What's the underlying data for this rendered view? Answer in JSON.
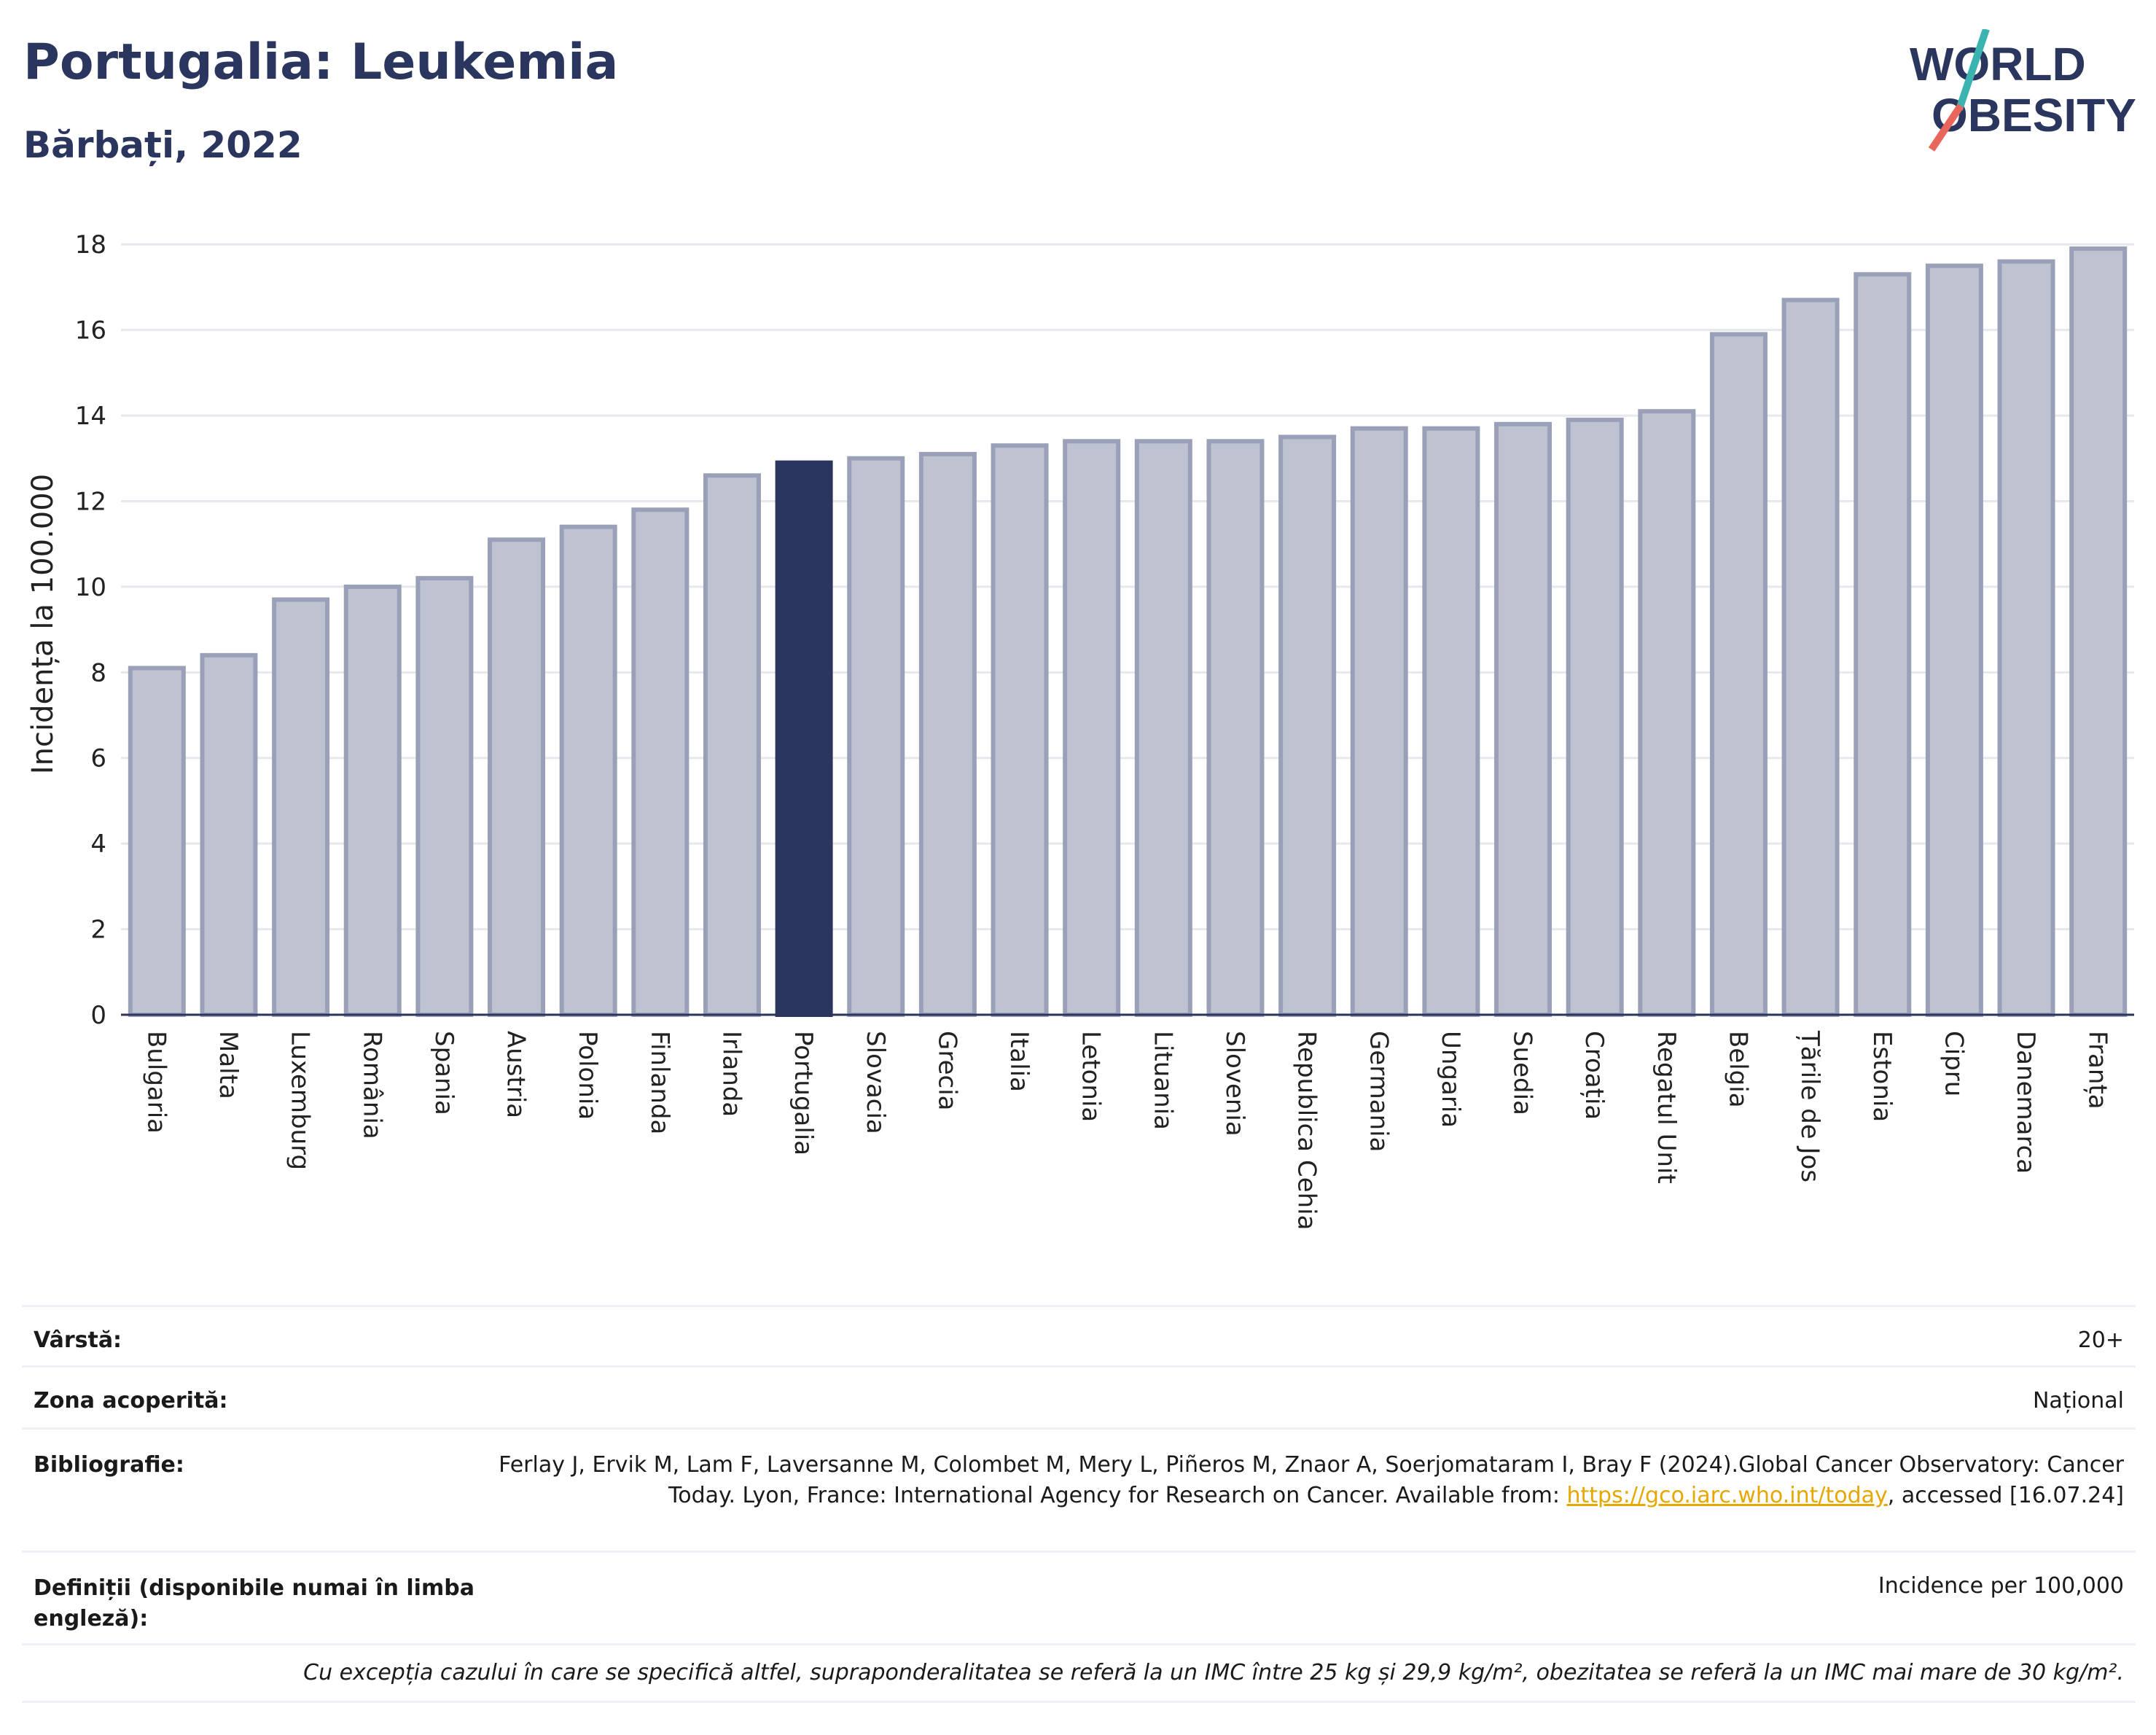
{
  "header": {
    "title": "Portugalia: Leukemia",
    "subtitle": "Bărbați, 2022",
    "logo_line1": "WORLD",
    "logo_line2": "OBESITY"
  },
  "colors": {
    "highlight": "#2a365e",
    "bar_fill": "#bfc3d1",
    "bar_stroke": "#9aa0b8",
    "slash_red": "#e8675a",
    "slash_teal": "#3bb3b1"
  },
  "chart_data": {
    "type": "bar",
    "ylabel": "Incidența la 100.000",
    "ylim": [
      0,
      18.6
    ],
    "yticks": [
      0,
      2,
      4,
      6,
      8,
      10,
      12,
      14,
      16,
      18
    ],
    "grid": true,
    "highlight_category": "Portugalia",
    "categories": [
      "Bulgaria",
      "Malta",
      "Luxemburg",
      "România",
      "Spania",
      "Austria",
      "Polonia",
      "Finlanda",
      "Irlanda",
      "Portugalia",
      "Slovacia",
      "Grecia",
      "Italia",
      "Letonia",
      "Lituania",
      "Slovenia",
      "Republica Cehia",
      "Germania",
      "Ungaria",
      "Suedia",
      "Croația",
      "Regatul Unit",
      "Belgia",
      "Țările de Jos",
      "Estonia",
      "Cipru",
      "Danemarca",
      "Franța"
    ],
    "values": [
      8.1,
      8.4,
      9.7,
      10.0,
      10.2,
      11.1,
      11.4,
      11.8,
      12.6,
      12.9,
      13.0,
      13.1,
      13.3,
      13.4,
      13.4,
      13.4,
      13.5,
      13.7,
      13.7,
      13.8,
      13.9,
      14.1,
      15.9,
      16.7,
      17.3,
      17.5,
      17.6,
      17.9
    ]
  },
  "info": {
    "age_label": "Vârstă:",
    "age_value": "20+",
    "area_label": "Zona acoperită:",
    "area_value": "Național",
    "biblio_label": "Bibliografie:",
    "biblio_text": "Ferlay J, Ervik M, Lam F, Laversanne M, Colombet M, Mery L, Piñeros M, Znaor A, Soerjomataram I, Bray F (2024).Global Cancer Observatory: Cancer Today. Lyon, France: International Agency for Research on Cancer. Available from: ",
    "biblio_link": "https://gco.iarc.who.int/today",
    "biblio_tail": ", accessed [16.07.24]",
    "def_label": "Definiții (disponibile numai în limba engleză):",
    "def_value": "Incidence per 100,000",
    "footnote": "Cu excepția cazului în care se specifică altfel, supraponderalitatea se referă la un IMC între 25 kg și 29,9 kg/m², obezitatea se referă la un IMC mai mare de 30 kg/m²."
  }
}
